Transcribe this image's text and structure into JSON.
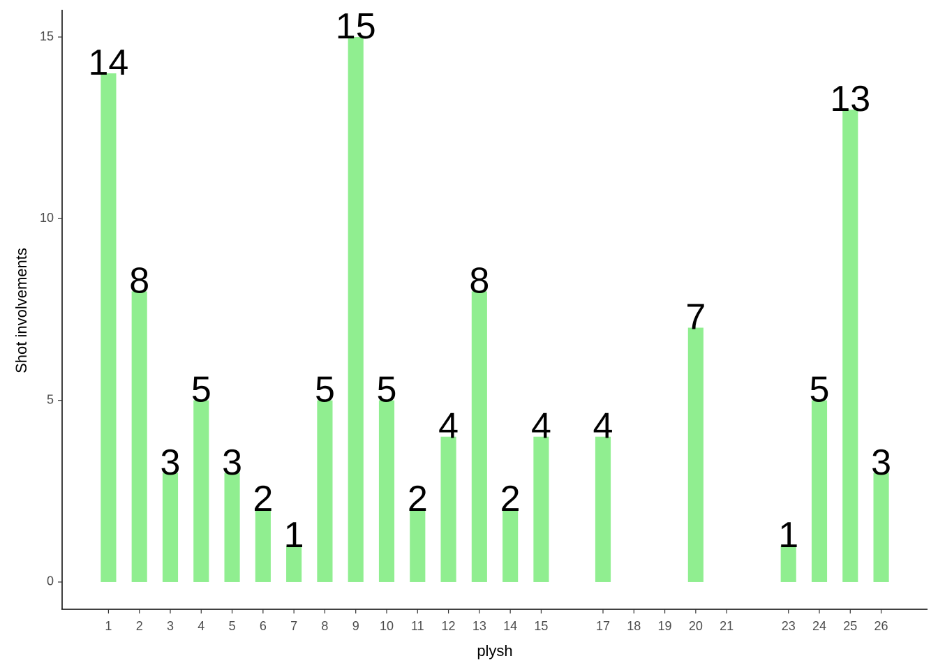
{
  "chart_data": {
    "type": "bar",
    "x": [
      1,
      2,
      3,
      4,
      5,
      6,
      7,
      8,
      9,
      10,
      11,
      12,
      13,
      14,
      15,
      17,
      20,
      23,
      24,
      25,
      26
    ],
    "values": [
      14,
      8,
      3,
      5,
      3,
      2,
      1,
      5,
      15,
      5,
      2,
      4,
      8,
      2,
      4,
      4,
      7,
      1,
      5,
      13,
      3
    ],
    "color": "#90ee90",
    "xlabel": "plysh",
    "ylabel": "Shot involvements",
    "xlim": [
      -0.5,
      27.5
    ],
    "ylim": [
      -0.75,
      15.75
    ],
    "xticks": [
      1,
      2,
      3,
      4,
      5,
      6,
      7,
      8,
      9,
      10,
      11,
      12,
      13,
      14,
      15,
      17,
      18,
      19,
      20,
      21,
      23,
      24,
      25,
      26
    ],
    "yticks": [
      0,
      5,
      10,
      15
    ]
  }
}
